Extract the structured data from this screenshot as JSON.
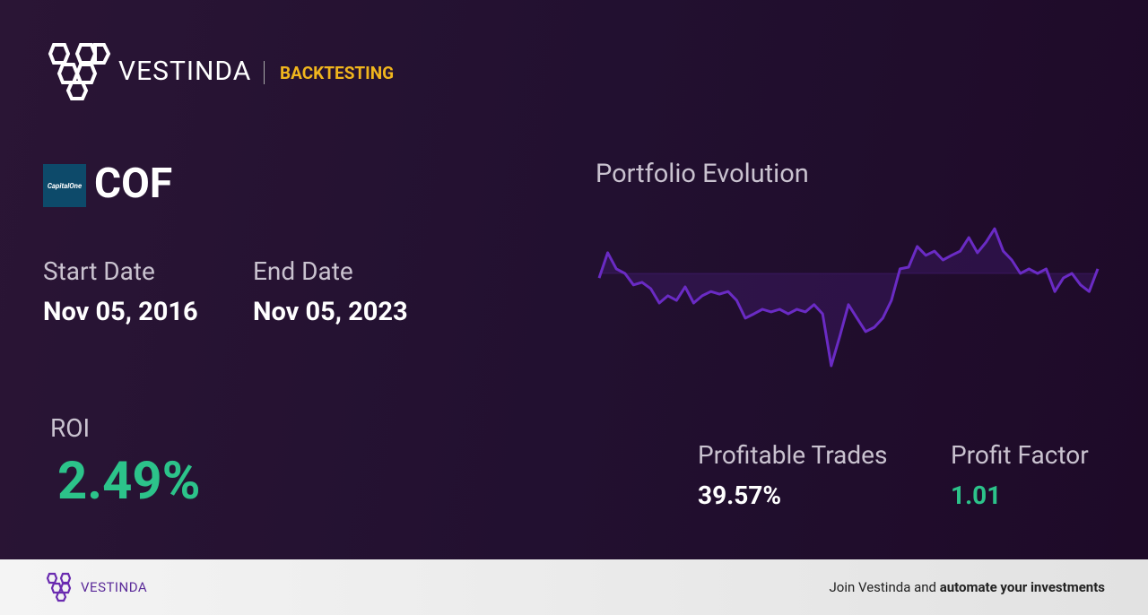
{
  "header": {
    "brand": "VESTINDA",
    "section": "BACKTESTING"
  },
  "asset": {
    "logo_text": "CapitalOne",
    "ticker": "COF"
  },
  "dates": {
    "start_label": "Start Date",
    "start": "Nov 05, 2016",
    "end_label": "End Date",
    "end": "Nov 05, 2023"
  },
  "roi": {
    "label": "ROI",
    "value": "2.49%"
  },
  "stats": {
    "trades_label": "Profitable Trades",
    "trades_value": "39.57%",
    "factor_label": "Profit Factor",
    "factor_value": "1.01"
  },
  "chart": {
    "type": "line",
    "title": "Portfolio Evolution",
    "color": "#6a2bc4",
    "ylim": [
      70,
      115
    ],
    "baseline": 100,
    "values": [
      98.6,
      106.3,
      101.4,
      100,
      96.5,
      97.3,
      95.4,
      91.0,
      93.2,
      91.8,
      95.9,
      91.0,
      93.2,
      94.5,
      93.7,
      94.5,
      91.8,
      86.4,
      87.7,
      89.1,
      88.3,
      89.1,
      87.7,
      89.1,
      88.3,
      90.5,
      87.7,
      71.9,
      80.9,
      90.5,
      86.4,
      82.3,
      83.6,
      86.4,
      91.8,
      101.4,
      101.9,
      108.2,
      105.5,
      106.8,
      104.1,
      105.5,
      106.8,
      110.9,
      106.3,
      109.5,
      113.6,
      106.8,
      104.1,
      100,
      101.4,
      100,
      101.4,
      94.5,
      98.6,
      100,
      96.5,
      94.5,
      101.4
    ]
  },
  "footer": {
    "brand": "VESTINDA",
    "text": "Join Vestinda and",
    "emphasis": "automate your investments"
  }
}
